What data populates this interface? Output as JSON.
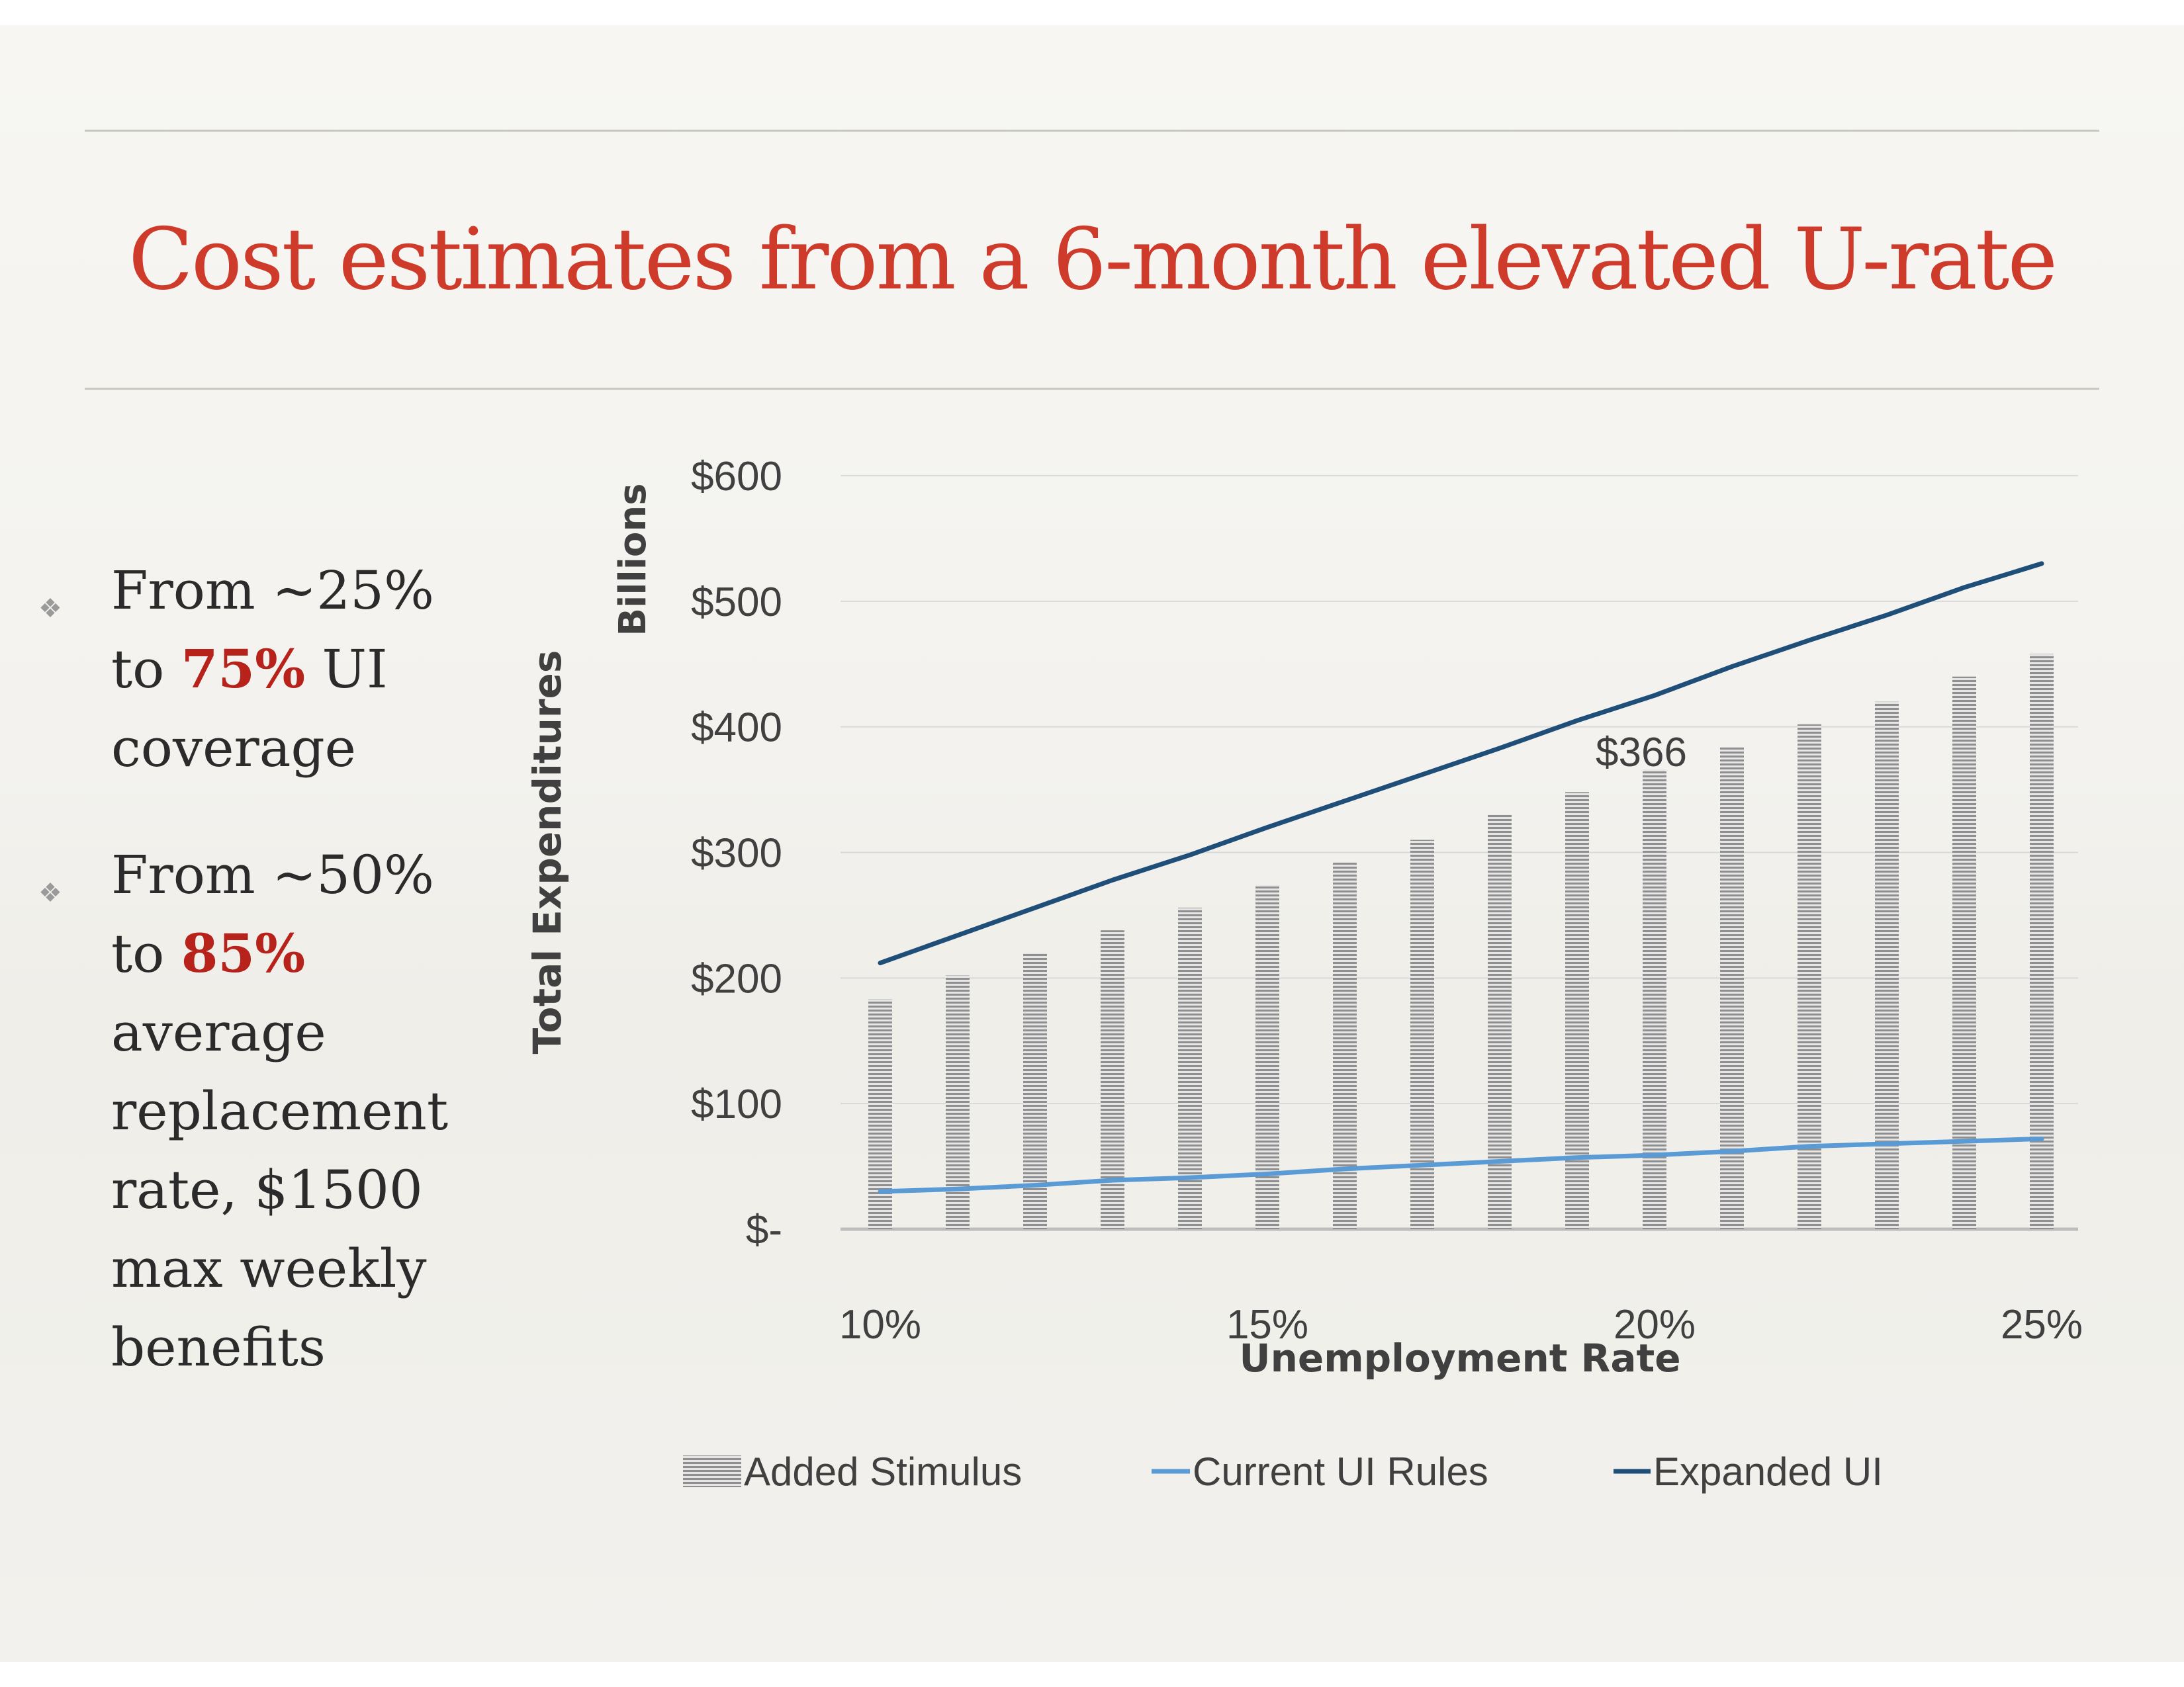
{
  "slide": {
    "title": "Cost estimates from a 6-month elevated U-rate",
    "bullets": [
      {
        "pre": "From ~25% to ",
        "highlight": "75%",
        "post": " UI coverage"
      },
      {
        "pre": "From ~50% to ",
        "highlight": "85%",
        "post": " average replacement rate, $1500 max weekly benefits"
      }
    ],
    "bullet_icon": "diamond-ornament-icon",
    "colors": {
      "title": "#cf3b2b",
      "highlight": "#b7221b",
      "current_ui": "#5b9bd5",
      "expanded_ui": "#1f4e79",
      "bars": "#9e9e9e"
    }
  },
  "chart_data": {
    "type": "bar",
    "x": [
      10,
      11,
      12,
      13,
      14,
      15,
      16,
      17,
      18,
      19,
      20,
      21,
      22,
      23,
      24,
      25
    ],
    "x_tick_labels": [
      "10%",
      "15%",
      "20%",
      "25%"
    ],
    "x_tick_values": [
      10,
      15,
      20,
      25
    ],
    "y_tick_labels": [
      "$-",
      "$100",
      "$200",
      "$300",
      "$400",
      "$500",
      "$600"
    ],
    "y_tick_values": [
      0,
      100,
      200,
      300,
      400,
      500,
      600
    ],
    "ylim": [
      0,
      600
    ],
    "xlabel": "Unemployment Rate",
    "ylabel": "Total Expenditures",
    "y_units_label": "Billions",
    "grid": true,
    "legend_position": "bottom",
    "series": [
      {
        "name": "Added Stimulus",
        "kind": "bar",
        "values": [
          183,
          202,
          220,
          238,
          256,
          274,
          292,
          310,
          330,
          348,
          366,
          384,
          402,
          420,
          440,
          458
        ]
      },
      {
        "name": "Current UI Rules",
        "kind": "line",
        "values": [
          30,
          32,
          35,
          39,
          41,
          44,
          48,
          51,
          54,
          57,
          59,
          62,
          66,
          68,
          70,
          72
        ]
      },
      {
        "name": "Expanded UI",
        "kind": "line",
        "values": [
          212,
          234,
          256,
          278,
          298,
          320,
          341,
          362,
          383,
          405,
          425,
          448,
          469,
          489,
          511,
          530
        ]
      }
    ],
    "annotations": [
      {
        "text": "$366",
        "x": 20
      }
    ]
  }
}
